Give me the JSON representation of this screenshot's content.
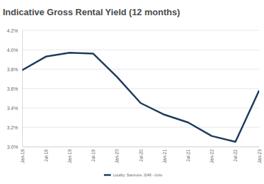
{
  "chart_data": {
    "type": "line",
    "title": "Indicative Gross Rental Yield (12 months)",
    "categories": [
      "Jan-18",
      "Jul-18",
      "Jan-19",
      "Jul-19",
      "Jan-20",
      "Jul-20",
      "Jan-21",
      "Jul-21",
      "Jan-22",
      "Jul-22",
      "Jan-23"
    ],
    "series": [
      {
        "name": "Locality: Stanmore, 2048 - Units",
        "color": "#1c3a5e",
        "values": [
          3.79,
          3.93,
          3.97,
          3.96,
          3.72,
          3.45,
          3.33,
          3.25,
          3.11,
          3.05,
          3.58
        ]
      }
    ],
    "ylim": [
      3.0,
      4.2
    ],
    "yticks": [
      {
        "value": 3.0,
        "label": "3.0%"
      },
      {
        "value": 3.2,
        "label": "3.2%"
      },
      {
        "value": 3.4,
        "label": "3.4%"
      },
      {
        "value": 3.6,
        "label": "3.6%"
      },
      {
        "value": 3.8,
        "label": "3.8%"
      },
      {
        "value": 4.0,
        "label": "4.0%"
      },
      {
        "value": 4.2,
        "label": "4.2%"
      }
    ],
    "grid": true,
    "legend": "bottom"
  }
}
